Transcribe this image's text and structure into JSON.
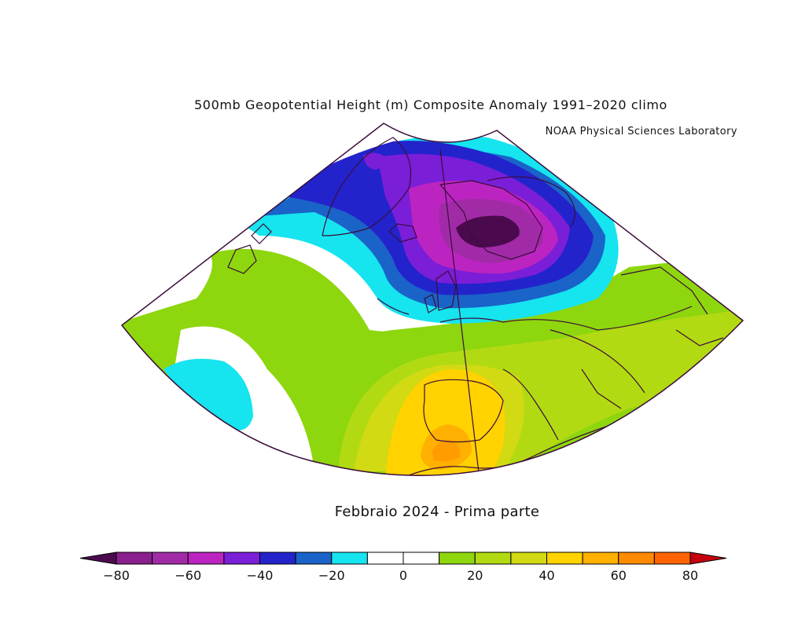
{
  "title": "500mb Geopotential Height (m) Composite Anomaly 1991–2020 climo",
  "credit": "NOAA Physical Sciences Laboratory",
  "caption": "Febbraio 2024 - Prima parte",
  "colorbar": {
    "ticks": [
      "−80",
      "−60",
      "−40",
      "−20",
      "0",
      "20",
      "40",
      "60",
      "80"
    ],
    "low_cap_color": "#4b0a4e",
    "high_cap_color": "#c4000e",
    "colors": [
      "#8a1f8e",
      "#a12ba6",
      "#bc24c1",
      "#7b1ed8",
      "#2323cc",
      "#1a63c8",
      "#16e4ef",
      "#ffffff",
      "#ffffff",
      "#8ed60e",
      "#b2da12",
      "#d1da12",
      "#ffd200",
      "#ffb000",
      "#ff8a00",
      "#ff6400"
    ]
  }
}
